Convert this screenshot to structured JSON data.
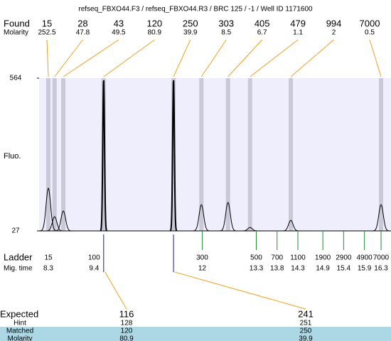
{
  "title": "refseq_FBXO44.F3 / refseq_FBXO44.R3 / BRC 125 / -1 / Well ID 1171600",
  "found": {
    "label": "Found",
    "sizes": [
      15,
      28,
      43,
      120,
      250,
      303,
      405,
      479,
      994,
      7000
    ],
    "molarity_label": "Molarity",
    "molarity": [
      252.5,
      47.8,
      49.5,
      80.9,
      39.9,
      8.5,
      6.7,
      1.1,
      2,
      0.5
    ]
  },
  "fluo": {
    "label": "Fluo.",
    "ylim": [
      27,
      564
    ],
    "yticks": [
      27,
      564
    ]
  },
  "trace": {
    "times": [
      8.3,
      8.45,
      8.66,
      9.63,
      11.31,
      11.98,
      12.62,
      13.15,
      14.13,
      16.3
    ],
    "heights": [
      177,
      77,
      97,
      564,
      564,
      119,
      127,
      39,
      64,
      119
    ]
  },
  "ladder": {
    "label": "Ladder",
    "sizes": [
      15,
      100,
      300,
      500,
      700,
      1100,
      1900,
      2900,
      4900,
      7000
    ],
    "mig_time_label": "Mig. time",
    "mig_times": [
      8.3,
      9.4,
      12,
      13.3,
      13.8,
      14.3,
      14.9,
      15.4,
      15.9,
      16.3
    ]
  },
  "expected": {
    "label": "Expected",
    "sizes": [
      116,
      241
    ],
    "hint_label": "Hint",
    "hint": [
      128,
      251
    ],
    "matched_label": "Matched",
    "matched": [
      120,
      250
    ],
    "molarity_label": "Molarity",
    "molarity": [
      80.9,
      39.9
    ]
  }
}
